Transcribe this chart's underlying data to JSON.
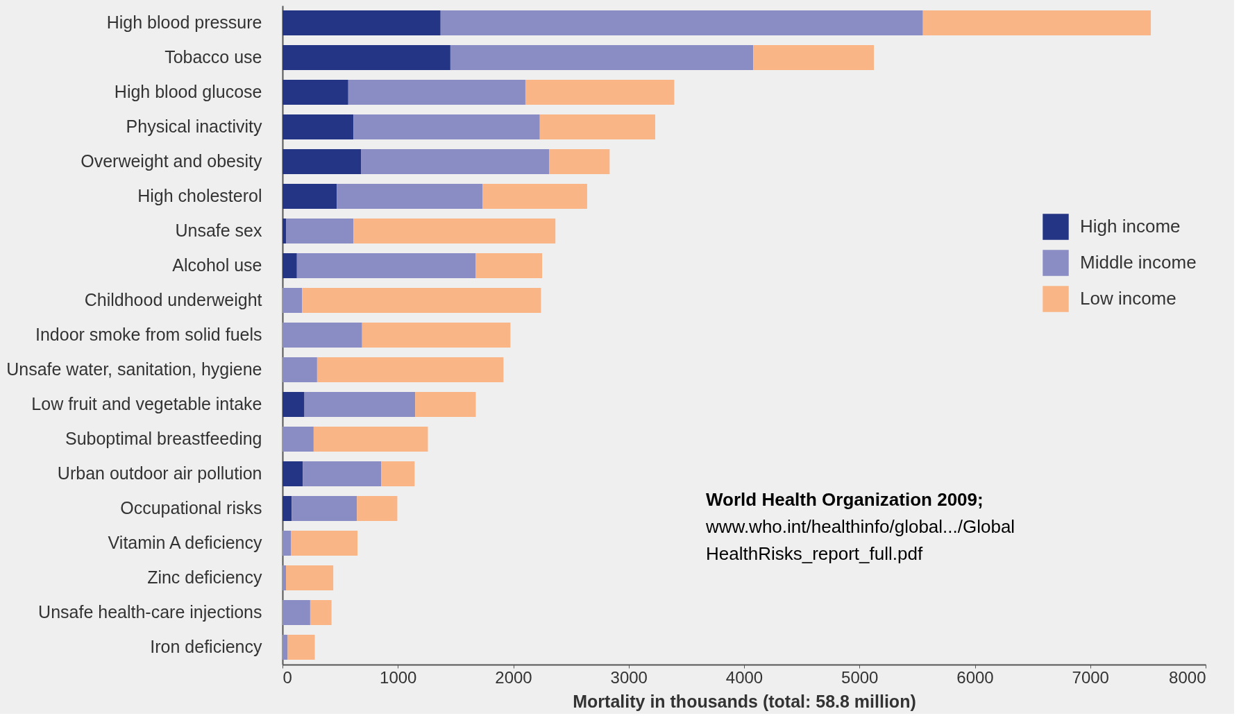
{
  "chart_data": {
    "type": "bar",
    "orientation": "horizontal",
    "stacked": true,
    "categories": [
      "High blood pressure",
      "Tobacco use",
      "High blood glucose",
      "Physical inactivity",
      "Overweight and obesity",
      "High cholesterol",
      "Unsafe sex",
      "Alcohol use",
      "Childhood underweight",
      "Indoor smoke from solid fuels",
      "Unsafe water, sanitation, hygiene",
      "Low fruit and vegetable intake",
      "Suboptimal breastfeeding",
      "Urban outdoor air pollution",
      "Occupational risks",
      "Vitamin A deficiency",
      "Zinc deficiency",
      "Unsafe health-care injections",
      "Iron deficiency"
    ],
    "series": [
      {
        "name": "High income",
        "color": "#233584",
        "values": [
          1370,
          1455,
          570,
          615,
          680,
          470,
          30,
          125,
          0,
          0,
          0,
          190,
          0,
          175,
          80,
          0,
          0,
          0,
          0
        ]
      },
      {
        "name": "Middle income",
        "color": "#8a8cc4",
        "values": [
          4180,
          2625,
          1535,
          1615,
          1630,
          1265,
          585,
          1550,
          170,
          690,
          300,
          960,
          270,
          680,
          565,
          75,
          30,
          240,
          45
        ]
      },
      {
        "name": "Low income",
        "color": "#f9b585",
        "values": [
          1975,
          1045,
          1290,
          1000,
          525,
          905,
          1750,
          575,
          2070,
          1285,
          1615,
          525,
          990,
          290,
          350,
          575,
          410,
          185,
          235
        ]
      }
    ],
    "xlabel": "Mortality in thousands (total: 58.8 million)",
    "xlim": [
      0,
      8000
    ],
    "xticks": [
      0,
      1000,
      2000,
      3000,
      4000,
      5000,
      6000,
      7000,
      8000
    ],
    "grid": false,
    "legend": "right",
    "annotations": [
      "World Health Organization 2009;",
      "www.who.int/healthinfo/global.../Global",
      "HealthRisks_report_full.pdf"
    ]
  }
}
